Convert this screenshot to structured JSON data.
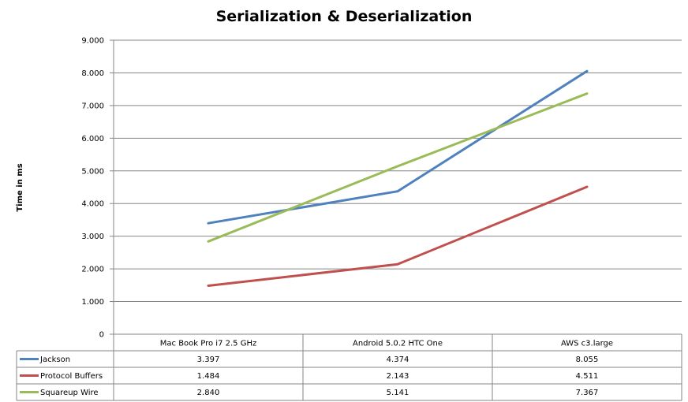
{
  "chart_data": {
    "type": "line",
    "title": "Serialization & Deserialization",
    "xlabel": "",
    "ylabel": "Time in ms",
    "ylim": [
      0,
      9
    ],
    "yticks": [
      "0",
      "1.000",
      "2.000",
      "3.000",
      "4.000",
      "5.000",
      "6.000",
      "7.000",
      "8.000",
      "9.000"
    ],
    "categories": [
      "Mac Book Pro i7 2.5 GHz",
      "Android 5.0.2 HTC One",
      "AWS c3.large"
    ],
    "grid": true,
    "legend": "data-table",
    "series": [
      {
        "name": "Jackson",
        "color": "#4f81bd",
        "values": [
          3.397,
          4.374,
          8.055
        ],
        "labels": [
          "3.397",
          "4.374",
          "8.055"
        ]
      },
      {
        "name": "Protocol Buffers",
        "color": "#c0504d",
        "values": [
          1.484,
          2.143,
          4.511
        ],
        "labels": [
          "1.484",
          "2.143",
          "4.511"
        ]
      },
      {
        "name": "Squareup Wire",
        "color": "#9bbb59",
        "values": [
          2.84,
          5.141,
          7.367
        ],
        "labels": [
          "2.840",
          "5.141",
          "7.367"
        ]
      }
    ]
  }
}
